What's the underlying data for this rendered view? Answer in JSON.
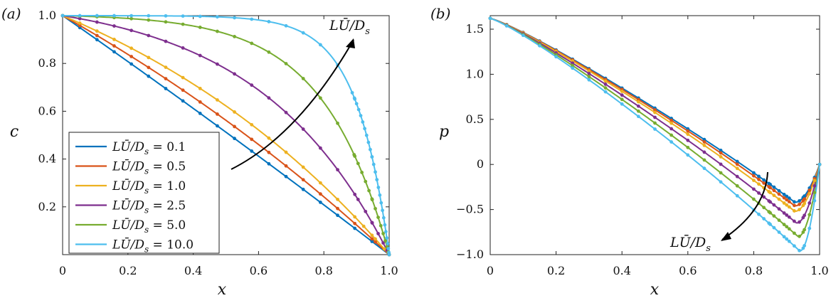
{
  "chart_data": [
    {
      "panel_label": "(a)",
      "type": "line",
      "xlabel": "x",
      "ylabel": "c",
      "xlim": [
        0,
        1
      ],
      "ylim": [
        0,
        1.0
      ],
      "x_ticks": [
        "0",
        "0.2",
        "0.4",
        "0.6",
        "0.8",
        "1.0"
      ],
      "y_ticks": [
        "0.2",
        "0.4",
        "0.6",
        "0.8",
        "1.0"
      ],
      "x_tick_values": [
        0,
        0.2,
        0.4,
        0.6,
        0.8,
        1.0
      ],
      "y_tick_values": [
        0.2,
        0.4,
        0.6,
        0.8,
        1.0
      ],
      "legend_position": "bottom-left",
      "annotation": "LŪ/D_s",
      "annotation_direction": "increasing toward upper-right",
      "series": [
        {
          "name": "LŪ/D_s = 0.1",
          "param": 0.1,
          "color": "#0072BD"
        },
        {
          "name": "LŪ/D_s = 0.5",
          "param": 0.5,
          "color": "#D95319"
        },
        {
          "name": "LŪ/D_s = 1.0",
          "param": 1.0,
          "color": "#EDB120"
        },
        {
          "name": "LŪ/D_s = 2.5",
          "param": 2.5,
          "color": "#7E2F8E"
        },
        {
          "name": "LŪ/D_s = 5.0",
          "param": 5.0,
          "color": "#77AC30"
        },
        {
          "name": "LŪ/D_s = 10.0",
          "param": 10.0,
          "color": "#4DBEEE"
        }
      ],
      "curve_form": "c(x) = (1 - exp(-Pe (1 - x))) / (1 - exp(-Pe))",
      "sample_x": [
        0,
        0.1,
        0.2,
        0.3,
        0.4,
        0.5,
        0.6,
        0.7,
        0.8,
        0.9,
        1.0
      ]
    },
    {
      "panel_label": "(b)",
      "type": "line",
      "xlabel": "x",
      "ylabel": "p",
      "xlim": [
        0,
        1
      ],
      "ylim": [
        -1.0,
        1.65
      ],
      "x_ticks": [
        "0",
        "0.2",
        "0.4",
        "0.6",
        "0.8",
        "1.0"
      ],
      "y_ticks": [
        "−1.0",
        "−0.5",
        "0",
        "0.5",
        "1.0",
        "1.5"
      ],
      "x_tick_values": [
        0,
        0.2,
        0.4,
        0.6,
        0.8,
        1.0
      ],
      "y_tick_values": [
        -1.0,
        -0.5,
        0,
        0.5,
        1.0,
        1.5
      ],
      "annotation": "LŪ/D_s",
      "annotation_direction": "increasing toward lower-left",
      "series": [
        {
          "name": "LŪ/D_s = 0.1",
          "color": "#0072BD",
          "min_value": -0.42,
          "min_at": 0.925
        },
        {
          "name": "LŪ/D_s = 0.5",
          "color": "#D95319",
          "min_value": -0.46,
          "min_at": 0.925
        },
        {
          "name": "LŪ/D_s = 1.0",
          "color": "#EDB120",
          "min_value": -0.52,
          "min_at": 0.925
        },
        {
          "name": "LŪ/D_s = 2.5",
          "color": "#7E2F8E",
          "min_value": -0.65,
          "min_at": 0.93
        },
        {
          "name": "LŪ/D_s = 5.0",
          "color": "#77AC30",
          "min_value": -0.8,
          "min_at": 0.935
        },
        {
          "name": "LŪ/D_s = 10.0",
          "color": "#4DBEEE",
          "min_value": -0.96,
          "min_at": 0.94
        }
      ],
      "start_value": 1.62,
      "end_value": 0.0
    }
  ],
  "legend": {
    "lhs": "LŪ/D",
    "sub": "s",
    "values": [
      "0.1",
      "0.5",
      "1.0",
      "2.5",
      "5.0",
      "10.0"
    ]
  },
  "labels": {
    "panel_a": "(a)",
    "panel_b": "(b)",
    "annotation_main": "LŪ/D",
    "annotation_sub": "s"
  }
}
